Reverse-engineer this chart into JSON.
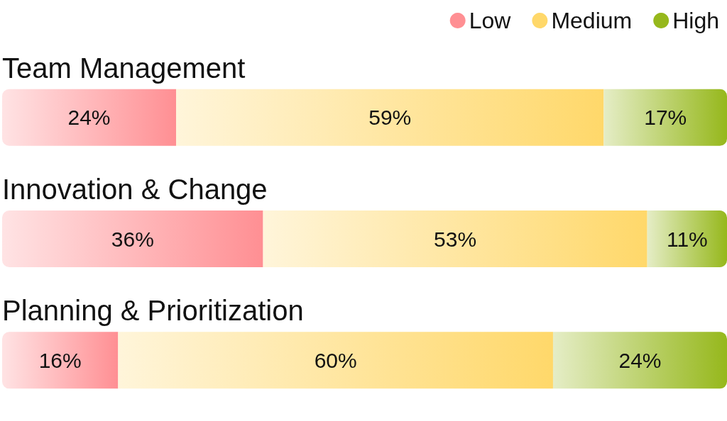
{
  "chart_data": {
    "type": "bar",
    "orientation": "horizontal",
    "stacked": true,
    "legend": "top right",
    "categories": [
      "Team Management",
      "Innovation & Change",
      "Planning & Prioritization"
    ],
    "series": [
      {
        "name": "Low",
        "color": "#ff8f93",
        "values": [
          24,
          36,
          16
        ],
        "value_labels": [
          "24%",
          "36%",
          "16%"
        ]
      },
      {
        "name": "Medium",
        "color": "#ffd86a",
        "values": [
          59,
          53,
          60
        ],
        "value_labels": [
          "59%",
          "53%",
          "60%"
        ]
      },
      {
        "name": "High",
        "color": "#96b81c",
        "values": [
          17,
          11,
          24
        ],
        "value_labels": [
          "17%",
          "11%",
          "24%"
        ]
      }
    ]
  }
}
